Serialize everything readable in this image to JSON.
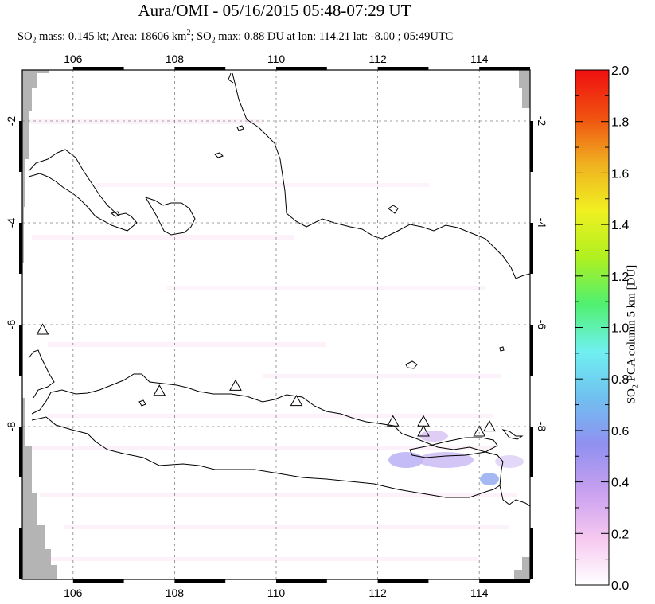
{
  "title": "Aura/OMI - 05/16/2015 05:48-07:29 UT",
  "subtitle": {
    "mass_prefix": "SO",
    "mass_sub": "2",
    "mass_text": " mass: 0.145 kt; Area: 18606 km",
    "area_sup": "2",
    "max_prefix": "; SO",
    "max_sub": "2",
    "max_text": " max: 0.88 DU at lon: 114.21 lat: -8.00 ; 05:49UTC"
  },
  "map": {
    "lon_ticks": [
      "106",
      "108",
      "110",
      "112",
      "114"
    ],
    "lat_ticks_left": [
      "-2",
      "-4",
      "-6",
      "-8"
    ],
    "lat_ticks_right": [
      "-2",
      "-4",
      "-6",
      "-8"
    ],
    "colors": {
      "land_border": "#000000",
      "grid": "#808080",
      "missing": "#b4b4b4",
      "volcano": "#000000"
    },
    "volcanoes": [
      {
        "name": "volcano-1",
        "lon": 105.4,
        "lat": -6.1
      },
      {
        "name": "volcano-2",
        "lon": 107.7,
        "lat": -7.3
      },
      {
        "name": "volcano-3",
        "lon": 109.2,
        "lat": -7.2
      },
      {
        "name": "volcano-4",
        "lon": 110.4,
        "lat": -7.5
      },
      {
        "name": "volcano-5",
        "lon": 112.3,
        "lat": -7.9
      },
      {
        "name": "volcano-6",
        "lon": 112.9,
        "lat": -7.9
      },
      {
        "name": "volcano-7",
        "lon": 112.9,
        "lat": -8.1
      },
      {
        "name": "volcano-8",
        "lon": 114.0,
        "lat": -8.1
      },
      {
        "name": "volcano-9",
        "lon": 114.2,
        "lat": -8.0
      }
    ]
  },
  "colorbar": {
    "ticks": [
      "0.0",
      "0.2",
      "0.4",
      "0.6",
      "0.8",
      "1.0",
      "1.2",
      "1.4",
      "1.6",
      "1.8",
      "2.0"
    ],
    "label_prefix": "SO",
    "label_sub": "2",
    "label_text": " PCA column 5 km [DU]",
    "stops": [
      "#ffffff",
      "#f6c8f0",
      "#c8a0f0",
      "#9090f0",
      "#70c0f0",
      "#70f0f0",
      "#50f070",
      "#b0f020",
      "#f0f020",
      "#f0b020",
      "#f05010",
      "#f01010"
    ]
  }
}
